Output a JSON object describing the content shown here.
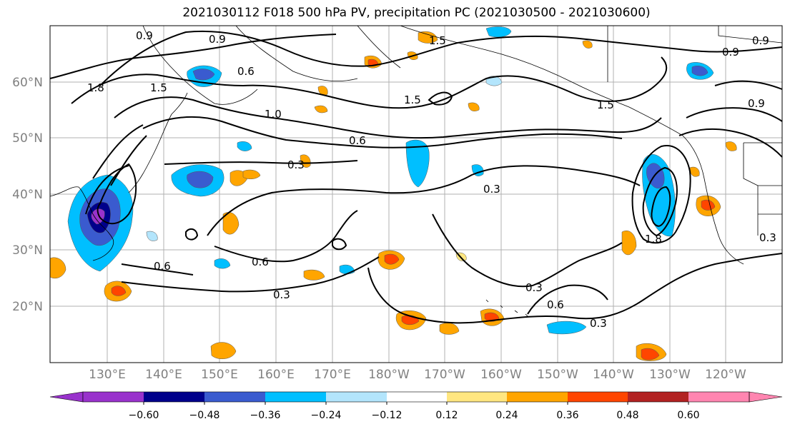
{
  "title": "2021030112 F018 500 hPa PV, precipitation PC (2021030500 - 2021030600)",
  "map": {
    "lat_ticks": [
      "60°N",
      "50°N",
      "40°N",
      "30°N",
      "20°N"
    ],
    "lon_ticks": [
      "130°E",
      "140°E",
      "150°E",
      "160°E",
      "170°E",
      "180°W",
      "170°W",
      "160°W",
      "150°W",
      "140°W",
      "130°W",
      "120°W"
    ],
    "contour_labels": [
      "0.9",
      "0.9",
      "0.9",
      "0.9",
      "1.8",
      "1.5",
      "0.6",
      "1.5",
      "1.5",
      "1.0",
      "0.6",
      "0.3",
      "0.3",
      "0.6",
      "0.6",
      "0.3",
      "0.3",
      "0.6",
      "0.3",
      "0.9",
      "1.8",
      "0.3",
      "1.5"
    ]
  },
  "colorbar": {
    "ticks": [
      "−0.60",
      "−0.48",
      "−0.36",
      "−0.24",
      "−0.12",
      "0.12",
      "0.24",
      "0.36",
      "0.48",
      "0.60"
    ],
    "colors": [
      "#9932cc",
      "#00008b",
      "#3a5bcf",
      "#00bfff",
      "#b3e5fc",
      "#ffffff",
      "#ffe680",
      "#ffa500",
      "#ff4500",
      "#b22222",
      "#ff85b0"
    ]
  }
}
